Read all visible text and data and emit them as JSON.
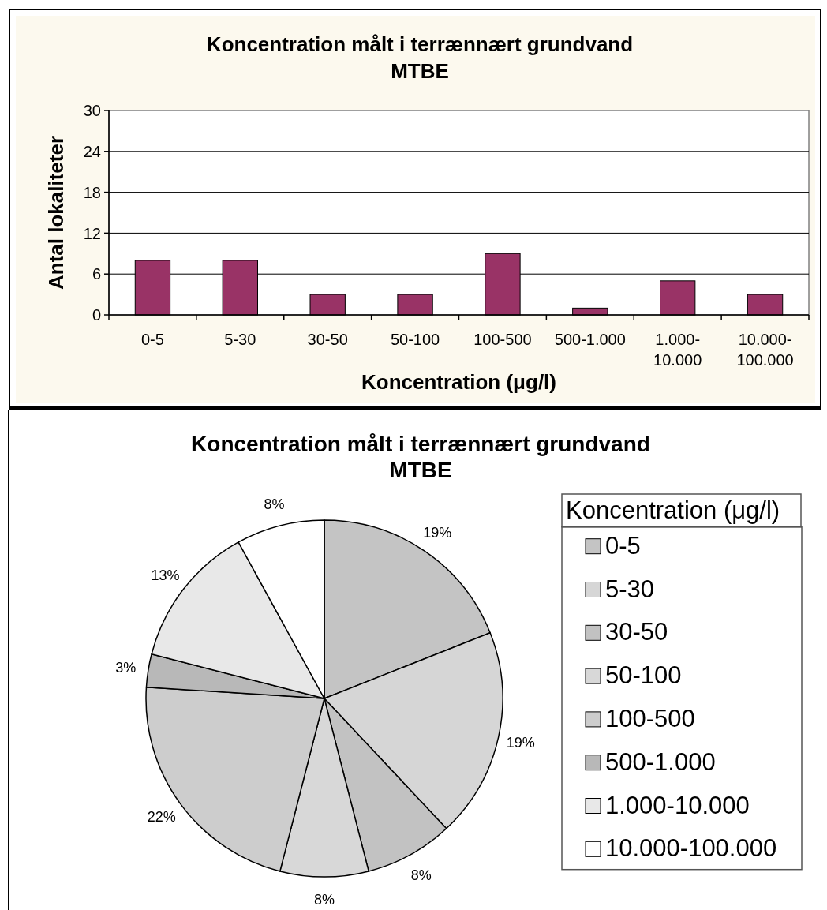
{
  "chart_data": [
    {
      "type": "bar",
      "title": "Koncentration målt i terrænnært grundvand",
      "subtitle": "MTBE",
      "xlabel": "Koncentration (μg/l)",
      "ylabel": "Antal lokaliteter",
      "categories": [
        "0-5",
        "5-30",
        "30-50",
        "50-100",
        "100-500",
        "500-1.000",
        "1.000-10.000",
        "10.000-100.000"
      ],
      "values": [
        8,
        8,
        3,
        3,
        9,
        1,
        5,
        3
      ],
      "color": "#993366",
      "ylim": [
        0,
        30
      ],
      "yticks": [
        0,
        6,
        12,
        18,
        24,
        30
      ],
      "grid": "y"
    },
    {
      "type": "pie",
      "title": "Koncentration målt i terrænnært grundvand",
      "subtitle": "MTBE",
      "categories": [
        "0-5",
        "5-30",
        "30-50",
        "50-100",
        "100-500",
        "500-1.000",
        "1.000-10.000",
        "10.000-100.000"
      ],
      "values": [
        19,
        19,
        8,
        8,
        22,
        3,
        13,
        8
      ],
      "colors": [
        "#c4c4c4",
        "#d6d6d6",
        "#c2c2c2",
        "#d8d8d8",
        "#cdcdcd",
        "#b8b8b8",
        "#e8e8e8",
        "#ffffff"
      ],
      "value_labels": [
        "19%",
        "19%",
        "8%",
        "8%",
        "22%",
        "3%",
        "13%",
        "8%"
      ],
      "legend": "right",
      "legend_title": "Koncentration (μg/l)"
    }
  ]
}
